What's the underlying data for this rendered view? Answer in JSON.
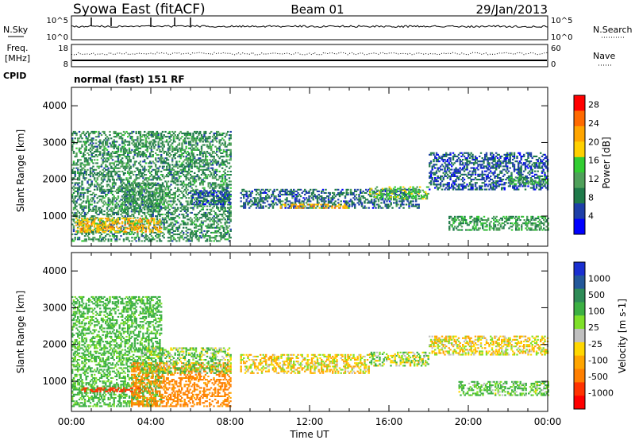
{
  "header": {
    "station": "Syowa East (fitACF)",
    "beam": "Beam 01",
    "date": "29/Jan/2013"
  },
  "noise_panel": {
    "left_label": "N.Sky",
    "left_ticks": [
      "10^5",
      "10^0"
    ],
    "right_label": "N.Search",
    "right_ticks": [
      "10^5",
      "10^0"
    ]
  },
  "freq_panel": {
    "left_label_line1": "Freq.",
    "left_label_line2": "[MHz]",
    "left_ticks": [
      "18",
      "8"
    ],
    "right_label": "Nave",
    "right_ticks": [
      "60",
      "0"
    ]
  },
  "cpid_panel": {
    "label": "CPID",
    "mode": "normal (fast) 151 RF"
  },
  "x_axis": {
    "label": "Time UT",
    "ticks": [
      "00:00",
      "04:00",
      "08:00",
      "12:00",
      "16:00",
      "20:00",
      "00:00"
    ]
  },
  "power_colorbar": {
    "label": "Power [dB]",
    "ticks": [
      "4",
      "8",
      "12",
      "16",
      "20",
      "24",
      "28"
    ],
    "colors": [
      "#0000ff",
      "#1e3fa8",
      "#1f7a4a",
      "#4fa05a",
      "#32cd32",
      "#ffd000",
      "#ffa500",
      "#ff6a00",
      "#ff0000"
    ]
  },
  "velocity_colorbar": {
    "label": "Velocity [m s-1]",
    "ticks": [
      "1000",
      "500",
      "100",
      "25",
      "-25",
      "-100",
      "-500",
      "-1000"
    ],
    "colors": [
      "#1a2fd0",
      "#23589a",
      "#2e8b57",
      "#3cb043",
      "#7fe02a",
      "#c0c0c0",
      "#ffd700",
      "#ffa500",
      "#ff7f00",
      "#ff3300",
      "#ff0000"
    ]
  },
  "chart_data": [
    {
      "type": "heatmap",
      "name": "Power",
      "xlabel": "Time UT",
      "ylabel": "Slant Range [km]",
      "x_range": [
        0,
        24
      ],
      "ylim": [
        180,
        4500
      ],
      "yticks": [
        1000,
        2000,
        3000,
        4000
      ],
      "colorbar_range_db": [
        0,
        30
      ],
      "echo_regions": [
        {
          "t_start": 0.0,
          "t_end": 8.0,
          "range_start": 300,
          "range_end": 3300,
          "power_db": 10
        },
        {
          "t_start": 0.2,
          "t_end": 4.5,
          "range_start": 550,
          "range_end": 950,
          "power_db": 20
        },
        {
          "t_start": 2.5,
          "t_end": 4.5,
          "range_start": 1100,
          "range_end": 1900,
          "power_db": 10
        },
        {
          "t_start": 6.0,
          "t_end": 8.0,
          "range_start": 1300,
          "range_end": 1700,
          "power_db": 6
        },
        {
          "t_start": 8.5,
          "t_end": 17.5,
          "range_start": 1200,
          "range_end": 1700,
          "power_db": 7
        },
        {
          "t_start": 10.5,
          "t_end": 14.0,
          "range_start": 1200,
          "range_end": 1320,
          "power_db": 20
        },
        {
          "t_start": 15.0,
          "t_end": 18.0,
          "range_start": 1450,
          "range_end": 1800,
          "power_db": 14
        },
        {
          "t_start": 18.0,
          "t_end": 24.0,
          "range_start": 1700,
          "range_end": 2700,
          "power_db": 6
        },
        {
          "t_start": 22.0,
          "t_end": 24.0,
          "range_start": 1850,
          "range_end": 2050,
          "power_db": 12
        },
        {
          "t_start": 19.0,
          "t_end": 24.0,
          "range_start": 600,
          "range_end": 1000,
          "power_db": 11
        }
      ]
    },
    {
      "type": "heatmap",
      "name": "Velocity",
      "xlabel": "Time UT",
      "ylabel": "Slant Range [km]",
      "x_range": [
        0,
        24
      ],
      "ylim": [
        180,
        4500
      ],
      "yticks": [
        1000,
        2000,
        3000,
        4000
      ],
      "colorbar_range_ms": [
        -1000,
        1000
      ],
      "echo_regions": [
        {
          "t_start": 0.0,
          "t_end": 4.5,
          "range_start": 300,
          "range_end": 3300,
          "velocity_ms": 150
        },
        {
          "t_start": 0.5,
          "t_end": 3.5,
          "range_start": 700,
          "range_end": 820,
          "velocity_ms": -400
        },
        {
          "t_start": 3.0,
          "t_end": 8.0,
          "range_start": 300,
          "range_end": 1500,
          "velocity_ms": -150
        },
        {
          "t_start": 3.5,
          "t_end": 8.0,
          "range_start": 1200,
          "range_end": 1900,
          "velocity_ms": 80
        },
        {
          "t_start": 8.5,
          "t_end": 15.0,
          "range_start": 1200,
          "range_end": 1700,
          "velocity_ms": 0
        },
        {
          "t_start": 15.0,
          "t_end": 18.0,
          "range_start": 1400,
          "range_end": 1800,
          "velocity_ms": 60
        },
        {
          "t_start": 18.0,
          "t_end": 24.0,
          "range_start": 1700,
          "range_end": 2200,
          "velocity_ms": 0
        },
        {
          "t_start": 19.5,
          "t_end": 24.0,
          "range_start": 600,
          "range_end": 1000,
          "velocity_ms": 120
        }
      ]
    }
  ]
}
